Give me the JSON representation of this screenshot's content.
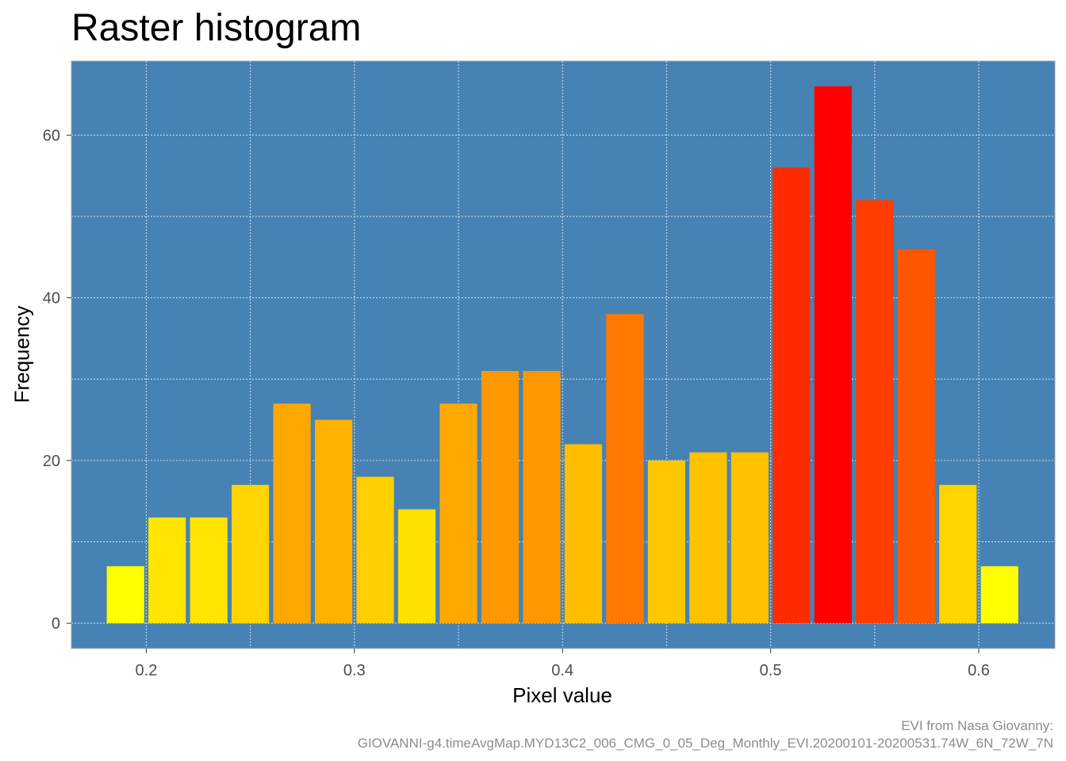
{
  "chart_data": {
    "type": "bar",
    "title": "Raster histogram",
    "xlabel": "Pixel value",
    "ylabel": "Frequency",
    "caption": [
      "EVI from Nasa Giovanny:",
      "GIOVANNI-g4.timeAvgMap.MYD13C2_006_CMG_0_05_Deg_Monthly_EVI.20200101-20200531.74W_6N_72W_7N"
    ],
    "x": [
      0.19,
      0.21,
      0.23,
      0.25,
      0.27,
      0.29,
      0.31,
      0.33,
      0.35,
      0.37,
      0.39,
      0.41,
      0.43,
      0.45,
      0.47,
      0.49,
      0.51,
      0.53,
      0.55,
      0.57,
      0.59,
      0.61
    ],
    "values": [
      7,
      13,
      13,
      17,
      27,
      25,
      18,
      14,
      27,
      31,
      31,
      22,
      38,
      20,
      21,
      21,
      56,
      66,
      52,
      46,
      17,
      7
    ],
    "bin_width": 0.02,
    "xlim": [
      0.164,
      0.6366
    ],
    "ylim": [
      -3.1,
      69.1
    ],
    "xticks": [
      0.2,
      0.3,
      0.4,
      0.5,
      0.6
    ],
    "xtick_labels": [
      "0.2",
      "0.3",
      "0.4",
      "0.5",
      "0.6"
    ],
    "yticks": [
      0,
      20,
      40,
      60
    ],
    "ytick_labels": [
      "0",
      "20",
      "40",
      "60"
    ],
    "grid": true,
    "colors": {
      "panel_background": "#4682B4",
      "grid": "#d9e4ee",
      "fill_low": "#FFFF00",
      "fill_high": "#FF0000"
    }
  }
}
